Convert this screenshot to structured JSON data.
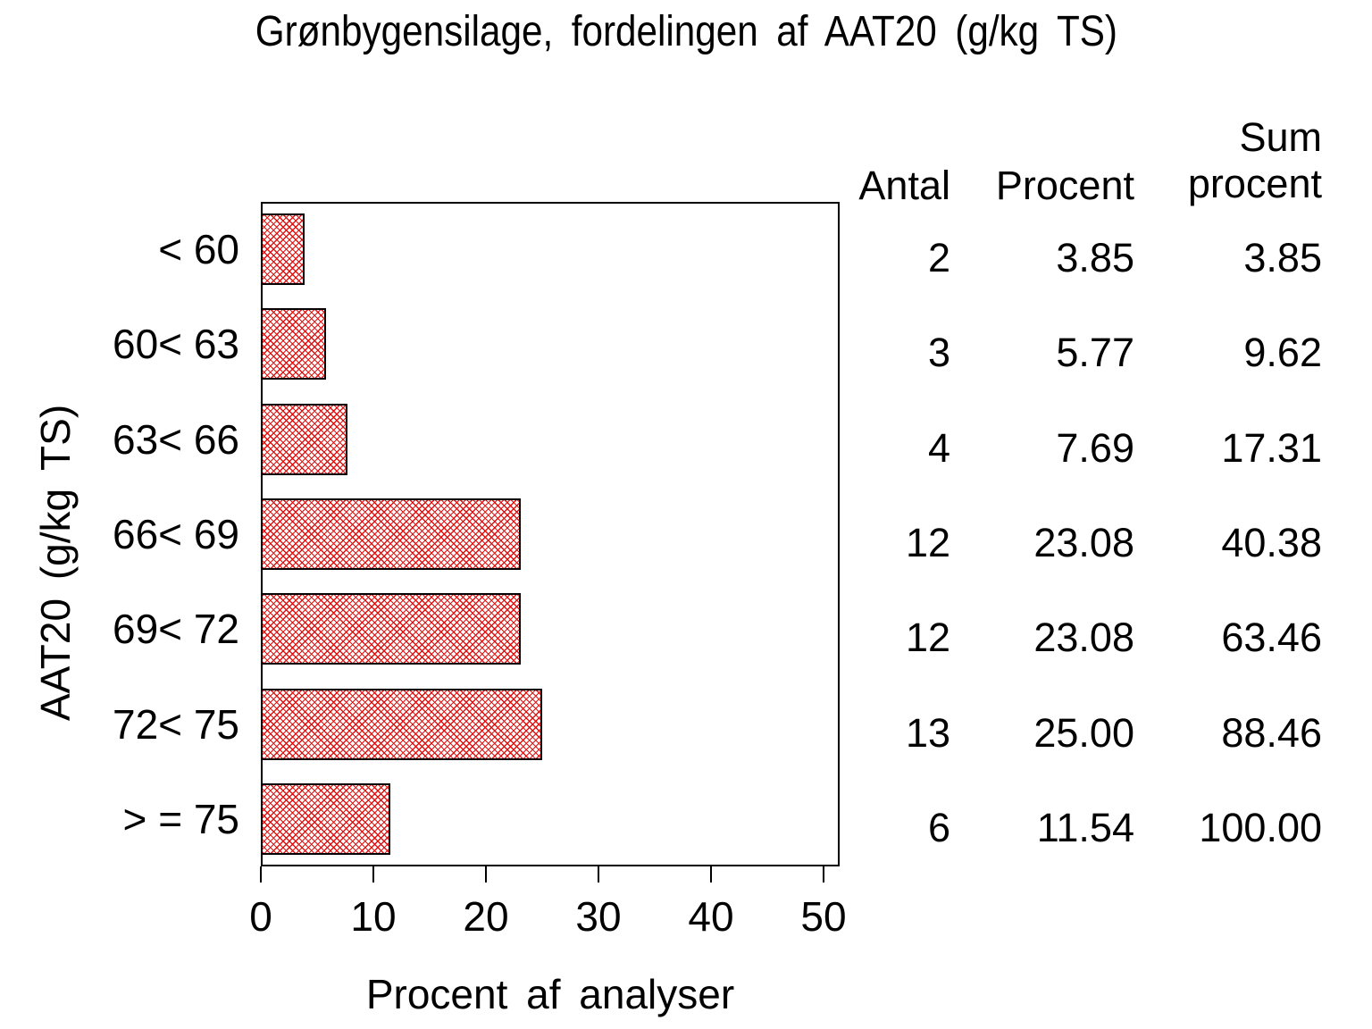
{
  "chart_data": {
    "type": "bar",
    "orientation": "horizontal",
    "title": "Grønbygensilage, fordelingen af AAT20 (g/kg TS)",
    "xlabel": "Procent af analyser",
    "ylabel": "AAT20 (g/kg TS)",
    "xlim": [
      0,
      50
    ],
    "xticks": [
      "0",
      "10",
      "20",
      "30",
      "40",
      "50"
    ],
    "grid": "off",
    "legend": "none",
    "bar_fill": {
      "pattern": "diagonal-crosshatch",
      "pattern_color": "#e01212",
      "background": "#ffffff",
      "border_color": "#000000"
    },
    "categories": [
      "< 60",
      "60< 63",
      "63< 66",
      "66< 69",
      "69< 72",
      "72< 75",
      "> = 75"
    ],
    "values": [
      3.85,
      5.77,
      7.69,
      23.08,
      23.08,
      25.0,
      11.54
    ],
    "table": {
      "col_headers": [
        "Antal",
        "Procent",
        "Sum procent"
      ],
      "rows": [
        {
          "antal": "2",
          "procent": "3.85",
          "sum_procent": "3.85"
        },
        {
          "antal": "3",
          "procent": "5.77",
          "sum_procent": "9.62"
        },
        {
          "antal": "4",
          "procent": "7.69",
          "sum_procent": "17.31"
        },
        {
          "antal": "12",
          "procent": "23.08",
          "sum_procent": "40.38"
        },
        {
          "antal": "12",
          "procent": "23.08",
          "sum_procent": "63.46"
        },
        {
          "antal": "13",
          "procent": "25.00",
          "sum_procent": "88.46"
        },
        {
          "antal": "6",
          "procent": "11.54",
          "sum_procent": "100.00"
        }
      ]
    }
  }
}
